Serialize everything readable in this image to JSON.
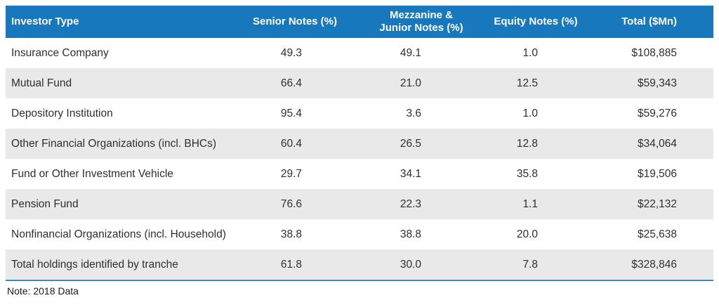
{
  "table": {
    "columns": [
      {
        "label": "Investor Type"
      },
      {
        "label": "Senior Notes (%)"
      },
      {
        "label": "Mezzanine &\nJunior Notes (%)"
      },
      {
        "label": "Equity Notes (%)"
      },
      {
        "label": "Total ($Mn)"
      }
    ],
    "rows": [
      {
        "investor_type": "Insurance Company",
        "senior": "49.3",
        "mezz": "49.1",
        "equity": "1.0",
        "total": "$108,885"
      },
      {
        "investor_type": "Mutual Fund",
        "senior": "66.4",
        "mezz": "21.0",
        "equity": "12.5",
        "total": "$59,343"
      },
      {
        "investor_type": "Depository Institution",
        "senior": "95.4",
        "mezz": "3.6",
        "equity": "1.0",
        "total": "$59,276"
      },
      {
        "investor_type": "Other Financial Organizations (incl. BHCs)",
        "senior": "60.4",
        "mezz": "26.5",
        "equity": "12.8",
        "total": "$34,064"
      },
      {
        "investor_type": "Fund or Other Investment Vehicle",
        "senior": "29.7",
        "mezz": "34.1",
        "equity": "35.8",
        "total": "$19,506"
      },
      {
        "investor_type": "Pension Fund",
        "senior": "76.6",
        "mezz": "22.3",
        "equity": "1.1",
        "total": "$22,132"
      },
      {
        "investor_type": "Nonfinancial Organizations (incl. Household)",
        "senior": "38.8",
        "mezz": "38.8",
        "equity": "20.0",
        "total": "$25,638"
      },
      {
        "investor_type": "Total holdings identified by tranche",
        "senior": "61.8",
        "mezz": "30.0",
        "equity": "7.8",
        "total": "$328,846"
      }
    ]
  },
  "note": "Note: 2018 Data",
  "colors": {
    "header_background": "#1778be",
    "header_text": "#ffffff",
    "stripe_background": "#e9e9e9",
    "body_text": "#2f2f2f",
    "bottom_rule": "#3c89c0"
  },
  "chart_data": {
    "type": "table",
    "columns": [
      "Investor Type",
      "Senior Notes (%)",
      "Mezzanine & Junior Notes (%)",
      "Equity Notes (%)",
      "Total ($Mn)"
    ],
    "rows": [
      [
        "Insurance Company",
        49.3,
        49.1,
        1.0,
        "$108,885"
      ],
      [
        "Mutual Fund",
        66.4,
        21.0,
        12.5,
        "$59,343"
      ],
      [
        "Depository Institution",
        95.4,
        3.6,
        1.0,
        "$59,276"
      ],
      [
        "Other Financial Organizations (incl. BHCs)",
        60.4,
        26.5,
        12.8,
        "$34,064"
      ],
      [
        "Fund or Other Investment Vehicle",
        29.7,
        34.1,
        35.8,
        "$19,506"
      ],
      [
        "Pension Fund",
        76.6,
        22.3,
        1.1,
        "$22,132"
      ],
      [
        "Nonfinancial Organizations (incl. Household)",
        38.8,
        38.8,
        20.0,
        "$25,638"
      ],
      [
        "Total holdings identified by tranche",
        61.8,
        30.0,
        7.8,
        "$328,846"
      ]
    ],
    "note": "Note: 2018 Data",
    "layout_hints": {
      "header_style": "blue band, white bold text",
      "row_striping": "alternating white / light gray starting white",
      "numeric_alignment": "right-aligned (decimal aligned) under centered headers",
      "bottom_rule": "thin blue line under last row"
    }
  }
}
